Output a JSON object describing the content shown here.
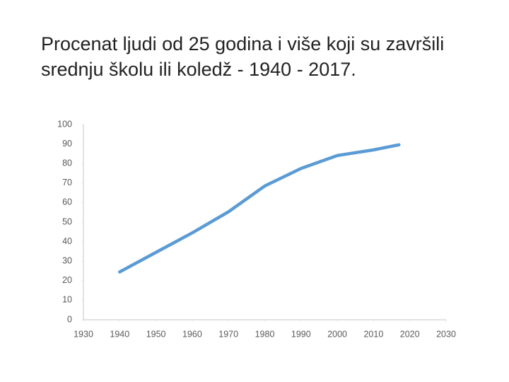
{
  "chart_data": {
    "type": "line",
    "title": "Procenat ljudi od 25 godina i više koji su završili srednju školu ili koledž - 1940 - 2017.",
    "x": [
      1940,
      1950,
      1960,
      1970,
      1980,
      1990,
      2000,
      2010,
      2017
    ],
    "series": [
      {
        "color": "#5b9bd5",
        "values": [
          24.5,
          34.5,
          44.5,
          55.3,
          68.5,
          77.5,
          84.1,
          87,
          89.6
        ]
      }
    ],
    "xlim": [
      1930,
      2030
    ],
    "xticks": [
      1930,
      1940,
      1950,
      1960,
      1970,
      1980,
      1990,
      2000,
      2010,
      2020,
      2030
    ],
    "ylim": [
      0,
      100
    ],
    "yticks": [
      0,
      10,
      20,
      30,
      40,
      50,
      60,
      70,
      80,
      90,
      100
    ],
    "grid": false
  }
}
